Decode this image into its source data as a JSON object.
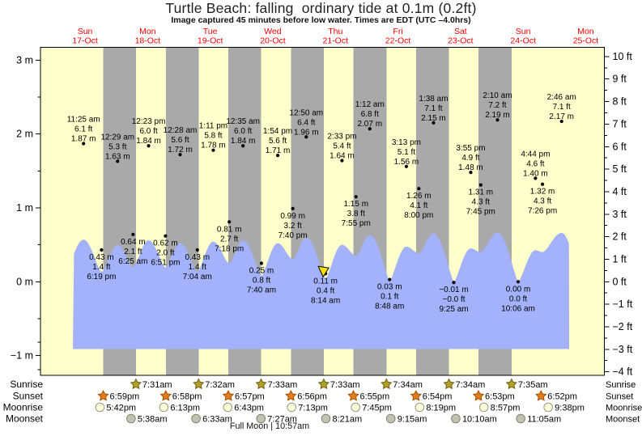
{
  "title": "Turtle Beach: falling  ordinary tide at 0.1m (0.2ft)",
  "subtitle": "Image captured 45 minutes before low water. Times are EDT (UTC –4.0hrs)",
  "full_moon": "Full Moon | 10:57am",
  "days": [
    {
      "name": "Sun",
      "date": "17-Oct"
    },
    {
      "name": "Mon",
      "date": "18-Oct"
    },
    {
      "name": "Tue",
      "date": "19-Oct"
    },
    {
      "name": "Wed",
      "date": "20-Oct"
    },
    {
      "name": "Thu",
      "date": "21-Oct"
    },
    {
      "name": "Fri",
      "date": "22-Oct"
    },
    {
      "name": "Sat",
      "date": "23-Oct"
    },
    {
      "name": "Sun",
      "date": "24-Oct"
    },
    {
      "name": "Mon",
      "date": "25-Oct"
    }
  ],
  "axes": {
    "left_unit": "m",
    "left_ticks": [
      3,
      2,
      1,
      0,
      -1
    ],
    "right_unit": "ft",
    "right_ticks": [
      10,
      9,
      8,
      7,
      6,
      5,
      4,
      3,
      2,
      1,
      0,
      -1,
      -2,
      -3,
      -4
    ]
  },
  "colors": {
    "plot_bg": "#ffffcc",
    "night_band": "#a9a9a9",
    "water": "#a3b2fb",
    "day_label": "#ff0000",
    "sunrise_star": "#b3a02a",
    "sunrise_star_edge": "#6e6414",
    "sunset_star": "#e07d1f",
    "sunset_star_edge": "#a34f00",
    "moonrise_circle": "#ffffdd",
    "moonrise_edge": "#99997d",
    "moonset_circle": "#c2c2b2",
    "moonset_edge": "#83836f",
    "marker": "#ffe000"
  },
  "chart_data": {
    "type": "area",
    "title": "Turtle Beach: falling  ordinary tide at 0.1m (0.2ft)",
    "ylabel_left": "meters",
    "ylabel_right": "feet",
    "ylim_m": [
      -1.27,
      3.17
    ],
    "x_days": [
      "17-Oct",
      "18-Oct",
      "19-Oct",
      "20-Oct",
      "21-Oct",
      "22-Oct",
      "23-Oct",
      "24-Oct",
      "25-Oct"
    ],
    "events": [
      {
        "td": 0.19,
        "h": 0.45,
        "virtual": true
      },
      {
        "td": 0.4757,
        "h": 1.87,
        "m": "1.87",
        "ft": "6.1",
        "time": "11:25 am",
        "kind": "high"
      },
      {
        "td": 0.7632,
        "h": 0.43,
        "m": "0.43",
        "ft": "1.4",
        "time": "6:19 pm",
        "kind": "low"
      },
      {
        "td": 1.0201,
        "h": 1.63,
        "m": "1.63",
        "ft": "5.3",
        "time": "12:29 am",
        "kind": "high"
      },
      {
        "td": 1.2674,
        "h": 0.64,
        "m": "0.64",
        "ft": "2.1",
        "time": "6:25 am",
        "kind": "low"
      },
      {
        "td": 1.516,
        "h": 1.84,
        "m": "1.84",
        "ft": "6.0",
        "time": "12:23 pm",
        "kind": "high"
      },
      {
        "td": 1.7854,
        "h": 0.62,
        "m": "0.62",
        "ft": "2.0",
        "time": "6:51 pm",
        "kind": "low"
      },
      {
        "td": 2.0194,
        "h": 1.72,
        "m": "1.72",
        "ft": "5.6",
        "time": "12:28 am",
        "kind": "high"
      },
      {
        "td": 2.2944,
        "h": 0.43,
        "m": "0.43",
        "ft": "1.4",
        "time": "7:04 am",
        "kind": "low"
      },
      {
        "td": 2.5493,
        "h": 1.78,
        "m": "1.78",
        "ft": "5.8",
        "time": "1:11 pm",
        "kind": "high"
      },
      {
        "td": 2.8042,
        "h": 0.81,
        "m": "0.81",
        "ft": "2.7",
        "time": "7:18 pm",
        "kind": "low"
      },
      {
        "td": 3.0243,
        "h": 1.84,
        "m": "1.84",
        "ft": "6.0",
        "time": "12:35 am",
        "kind": "high"
      },
      {
        "td": 3.3194,
        "h": 0.25,
        "m": "0.25",
        "ft": "0.8",
        "time": "7:40 am",
        "kind": "low"
      },
      {
        "td": 3.5792,
        "h": 1.71,
        "m": "1.71",
        "ft": "5.6",
        "time": "1:54 pm",
        "kind": "high"
      },
      {
        "td": 3.8194,
        "h": 0.99,
        "m": "0.99",
        "ft": "3.2",
        "time": "7:40 pm",
        "kind": "low"
      },
      {
        "td": 4.0347,
        "h": 1.96,
        "m": "1.96",
        "ft": "6.4",
        "time": "12:50 am",
        "kind": "high"
      },
      {
        "td": 4.3431,
        "h": 0.11,
        "m": "0.11",
        "ft": "0.4",
        "time": "8:14 am",
        "kind": "low",
        "current": true
      },
      {
        "td": 4.6062,
        "h": 1.64,
        "m": "1.64",
        "ft": "5.4",
        "time": "2:33 pm",
        "kind": "high"
      },
      {
        "td": 4.8299,
        "h": 1.15,
        "m": "1.15",
        "ft": "3.8",
        "time": "7:55 pm",
        "kind": "low"
      },
      {
        "td": 5.05,
        "h": 2.07,
        "m": "2.07",
        "ft": "6.8",
        "time": "1:12 am",
        "kind": "high"
      },
      {
        "td": 5.3667,
        "h": 0.03,
        "m": "0.03",
        "ft": "0.1",
        "time": "8:48 am",
        "kind": "low"
      },
      {
        "td": 5.634,
        "h": 1.56,
        "m": "1.56",
        "ft": "5.1",
        "time": "3:13 pm",
        "kind": "high"
      },
      {
        "td": 5.8333,
        "h": 1.26,
        "m": "1.26",
        "ft": "4.1",
        "time": "8:00 pm",
        "kind": "low"
      },
      {
        "td": 6.0681,
        "h": 2.15,
        "m": "2.15",
        "ft": "7.1",
        "time": "1:38 am",
        "kind": "high"
      },
      {
        "td": 6.3924,
        "h": -0.01,
        "m": "−0.01",
        "ft": "−0.0",
        "time": "9:25 am",
        "kind": "low"
      },
      {
        "td": 6.6632,
        "h": 1.48,
        "m": "1.48",
        "ft": "4.9",
        "time": "3:55 pm",
        "kind": "high"
      },
      {
        "td": 6.8229,
        "h": 1.31,
        "m": "1.31",
        "ft": "4.3",
        "time": "7:45 pm",
        "kind": "low"
      },
      {
        "td": 7.0903,
        "h": 2.19,
        "m": "2.19",
        "ft": "7.2",
        "time": "2:10 am",
        "kind": "high"
      },
      {
        "td": 7.4208,
        "h": 0.0,
        "m": "0.00",
        "ft": "0.0",
        "time": "10:06 am",
        "kind": "low"
      },
      {
        "td": 7.6972,
        "h": 1.4,
        "m": "1.40",
        "ft": "4.6",
        "time": "4:44 pm",
        "kind": "high"
      },
      {
        "td": 7.8097,
        "h": 1.32,
        "m": "1.32",
        "ft": "4.3",
        "time": "7:26 pm",
        "kind": "low"
      },
      {
        "td": 8.1153,
        "h": 2.17,
        "m": "2.17",
        "ft": "7.1",
        "time": "2:46 am",
        "kind": "high"
      },
      {
        "td": 8.41,
        "h": 0.1,
        "virtual": true
      }
    ]
  },
  "sun_moon": {
    "rows": [
      {
        "id": "sunrise",
        "label": "Sunrise",
        "icon": "star",
        "entries": [
          {
            "td": 1.31319,
            "time": "7:31am"
          },
          {
            "td": 2.31389,
            "time": "7:32am"
          },
          {
            "td": 3.31458,
            "time": "7:33am"
          },
          {
            "td": 4.31458,
            "time": "7:33am"
          },
          {
            "td": 5.31528,
            "time": "7:34am"
          },
          {
            "td": 6.31528,
            "time": "7:34am"
          },
          {
            "td": 7.31597,
            "time": "7:35am"
          }
        ]
      },
      {
        "id": "sunset",
        "label": "Sunset",
        "icon": "star",
        "entries": [
          {
            "td": 0.79097,
            "time": "6:59pm"
          },
          {
            "td": 1.79028,
            "time": "6:58pm"
          },
          {
            "td": 2.78958,
            "time": "6:57pm"
          },
          {
            "td": 3.78889,
            "time": "6:56pm"
          },
          {
            "td": 4.78819,
            "time": "6:55pm"
          },
          {
            "td": 5.7875,
            "time": "6:54pm"
          },
          {
            "td": 6.78681,
            "time": "6:53pm"
          },
          {
            "td": 7.78611,
            "time": "6:52pm"
          }
        ]
      },
      {
        "id": "moonrise",
        "label": "Moonrise",
        "icon": "circle",
        "entries": [
          {
            "td": 0.7375,
            "time": "5:42pm"
          },
          {
            "td": 1.75903,
            "time": "6:13pm"
          },
          {
            "td": 2.77986,
            "time": "6:43pm"
          },
          {
            "td": 3.80069,
            "time": "7:13pm"
          },
          {
            "td": 4.82292,
            "time": "7:45pm"
          },
          {
            "td": 5.84653,
            "time": "8:19pm"
          },
          {
            "td": 6.87292,
            "time": "8:57pm"
          },
          {
            "td": 7.90139,
            "time": "9:38pm"
          }
        ]
      },
      {
        "id": "moonset",
        "label": "Moonset",
        "icon": "circle",
        "entries": [
          {
            "td": 1.23472,
            "time": "5:38am"
          },
          {
            "td": 2.27292,
            "time": "6:33am"
          },
          {
            "td": 3.31042,
            "time": "7:27am"
          },
          {
            "td": 4.34792,
            "time": "8:21am"
          },
          {
            "td": 5.38542,
            "time": "9:15am"
          },
          {
            "td": 6.42361,
            "time": "10:10am"
          },
          {
            "td": 7.46181,
            "time": "11:05am"
          }
        ]
      }
    ]
  }
}
